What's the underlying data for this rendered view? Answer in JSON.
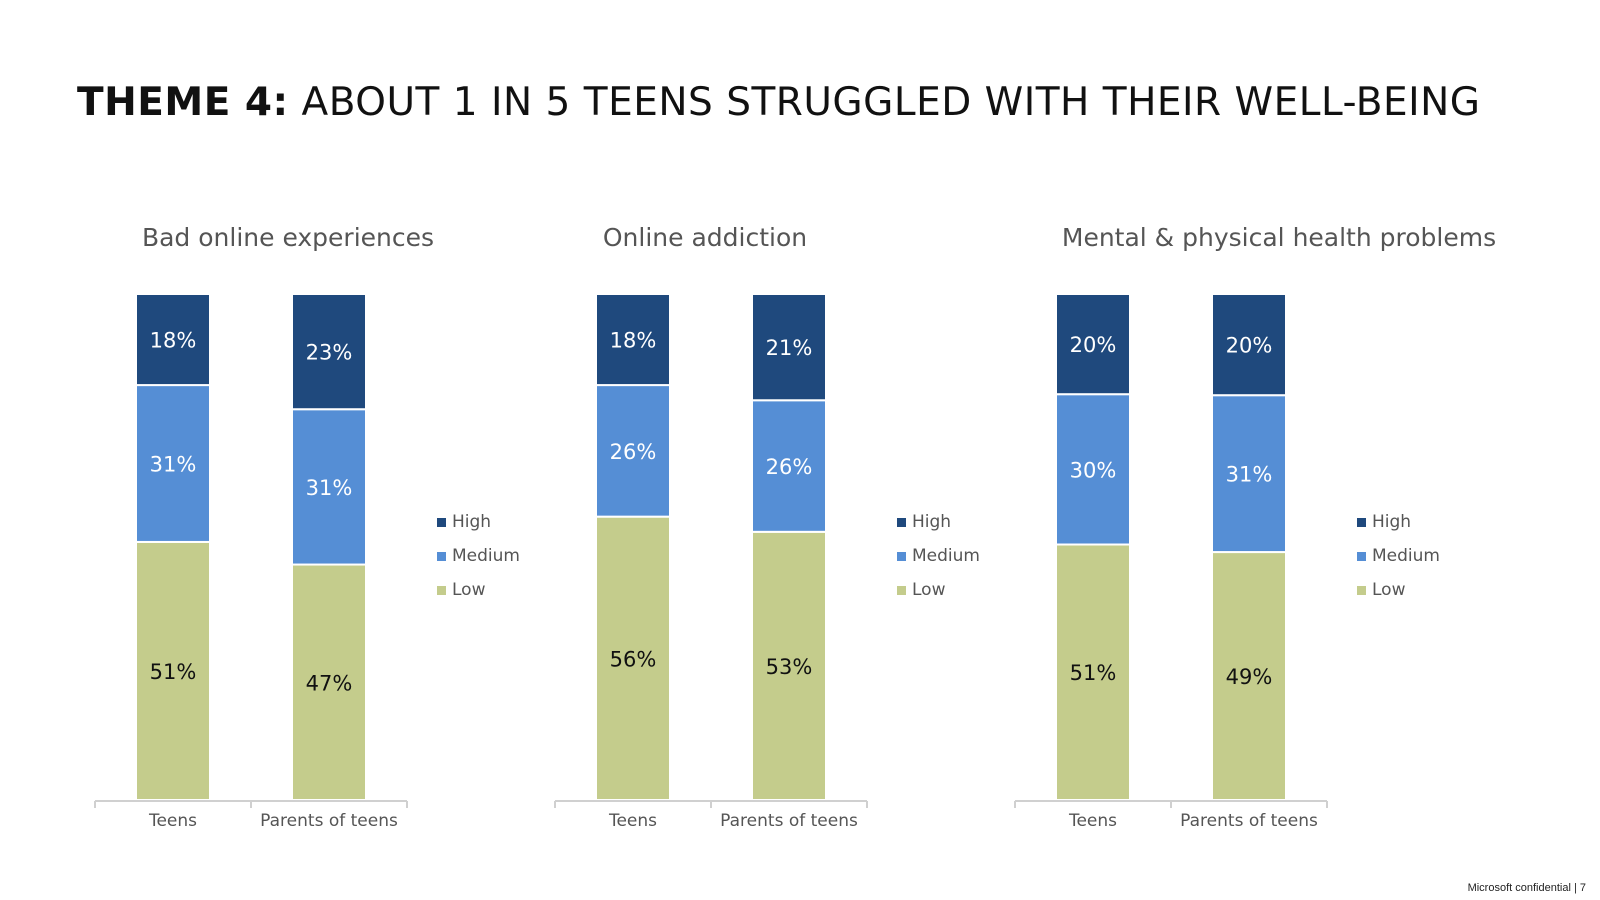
{
  "slide": {
    "title_lead": "THEME 4:",
    "title_rest": " ABOUT 1 IN 5 TEENS STRUGGLED WITH THEIR WELL-BEING",
    "footer": "Microsoft confidential | 7"
  },
  "colors": {
    "High": "#1f497d",
    "Medium": "#558ed5",
    "Low": "#c4cc8c",
    "label_dark": "#111111",
    "label_light": "#ffffff"
  },
  "chart_data": [
    {
      "type": "bar",
      "stacked": true,
      "title": "Bad online experiences",
      "categories": [
        "Teens",
        "Parents of teens"
      ],
      "series": [
        {
          "name": "Low",
          "values": [
            51,
            47
          ],
          "labels": [
            "51%",
            "47%"
          ]
        },
        {
          "name": "Medium",
          "values": [
            31,
            31
          ],
          "labels": [
            "31%",
            "31%"
          ]
        },
        {
          "name": "High",
          "values": [
            18,
            23
          ],
          "labels": [
            "18%",
            "23%"
          ]
        }
      ],
      "legend": [
        "High",
        "Medium",
        "Low"
      ],
      "legend_position": "right",
      "ylim": [
        0,
        100
      ]
    },
    {
      "type": "bar",
      "stacked": true,
      "title": "Online addiction",
      "categories": [
        "Teens",
        "Parents of teens"
      ],
      "series": [
        {
          "name": "Low",
          "values": [
            56,
            53
          ],
          "labels": [
            "56%",
            "53%"
          ]
        },
        {
          "name": "Medium",
          "values": [
            26,
            26
          ],
          "labels": [
            "26%",
            "26%"
          ]
        },
        {
          "name": "High",
          "values": [
            18,
            21
          ],
          "labels": [
            "18%",
            "21%"
          ]
        }
      ],
      "legend": [
        "High",
        "Medium",
        "Low"
      ],
      "legend_position": "right",
      "ylim": [
        0,
        100
      ]
    },
    {
      "type": "bar",
      "stacked": true,
      "title": "Mental & physical health problems",
      "categories": [
        "Teens",
        "Parents of teens"
      ],
      "series": [
        {
          "name": "Low",
          "values": [
            51,
            49
          ],
          "labels": [
            "51%",
            "49%"
          ]
        },
        {
          "name": "Medium",
          "values": [
            30,
            31
          ],
          "labels": [
            "30%",
            "31%"
          ]
        },
        {
          "name": "High",
          "values": [
            20,
            20
          ],
          "labels": [
            "20%",
            "20%"
          ]
        }
      ],
      "legend": [
        "High",
        "Medium",
        "Low"
      ],
      "legend_position": "right",
      "ylim": [
        0,
        100
      ]
    }
  ]
}
